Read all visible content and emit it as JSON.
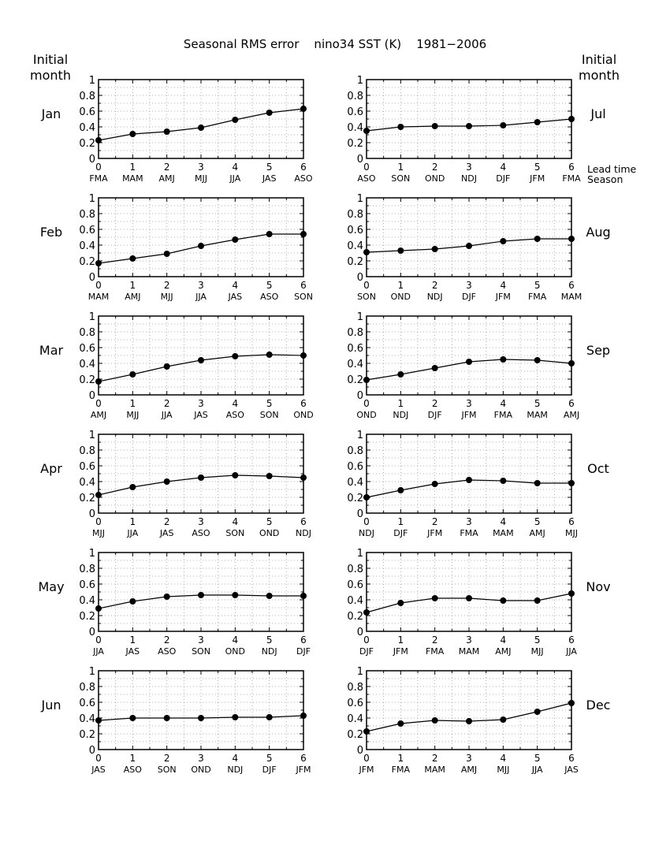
{
  "page": {
    "title": "Seasonal RMS error    nino34 SST (K)    1981−2006",
    "left_header": [
      "Initial",
      "month"
    ],
    "right_header": [
      "Initial",
      "month"
    ],
    "axis_note_lead": "Lead time",
    "axis_note_season": "Season"
  },
  "chart_data": [
    {
      "type": "line",
      "initial_month": "Jan",
      "column": "left",
      "x": [
        0,
        1,
        2,
        3,
        4,
        5,
        6
      ],
      "seasons": [
        "FMA",
        "MAM",
        "AMJ",
        "MJJ",
        "JJA",
        "JAS",
        "ASO"
      ],
      "values": [
        0.23,
        0.31,
        0.34,
        0.39,
        0.49,
        0.58,
        0.63
      ],
      "ylim": [
        0,
        1
      ],
      "yticks": [
        "0",
        "0.2",
        "0.4",
        "0.6",
        "0.8",
        "1"
      ],
      "grid": "dotted"
    },
    {
      "type": "line",
      "initial_month": "Feb",
      "column": "left",
      "x": [
        0,
        1,
        2,
        3,
        4,
        5,
        6
      ],
      "seasons": [
        "MAM",
        "AMJ",
        "MJJ",
        "JJA",
        "JAS",
        "ASO",
        "SON"
      ],
      "values": [
        0.17,
        0.23,
        0.29,
        0.39,
        0.47,
        0.54,
        0.54
      ],
      "ylim": [
        0,
        1
      ],
      "yticks": [
        "0",
        "0.2",
        "0.4",
        "0.6",
        "0.8",
        "1"
      ],
      "grid": "dotted"
    },
    {
      "type": "line",
      "initial_month": "Mar",
      "column": "left",
      "x": [
        0,
        1,
        2,
        3,
        4,
        5,
        6
      ],
      "seasons": [
        "AMJ",
        "MJJ",
        "JJA",
        "JAS",
        "ASO",
        "SON",
        "OND"
      ],
      "values": [
        0.17,
        0.26,
        0.36,
        0.44,
        0.49,
        0.51,
        0.5
      ],
      "ylim": [
        0,
        1
      ],
      "yticks": [
        "0",
        "0.2",
        "0.4",
        "0.6",
        "0.8",
        "1"
      ],
      "grid": "dotted"
    },
    {
      "type": "line",
      "initial_month": "Apr",
      "column": "left",
      "x": [
        0,
        1,
        2,
        3,
        4,
        5,
        6
      ],
      "seasons": [
        "MJJ",
        "JJA",
        "JAS",
        "ASO",
        "SON",
        "OND",
        "NDJ"
      ],
      "values": [
        0.23,
        0.33,
        0.4,
        0.45,
        0.48,
        0.47,
        0.45
      ],
      "ylim": [
        0,
        1
      ],
      "yticks": [
        "0",
        "0.2",
        "0.4",
        "0.6",
        "0.8",
        "1"
      ],
      "grid": "dotted"
    },
    {
      "type": "line",
      "initial_month": "May",
      "column": "left",
      "x": [
        0,
        1,
        2,
        3,
        4,
        5,
        6
      ],
      "seasons": [
        "JJA",
        "JAS",
        "ASO",
        "SON",
        "OND",
        "NDJ",
        "DJF"
      ],
      "values": [
        0.29,
        0.38,
        0.44,
        0.46,
        0.46,
        0.45,
        0.45
      ],
      "ylim": [
        0,
        1
      ],
      "yticks": [
        "0",
        "0.2",
        "0.4",
        "0.6",
        "0.8",
        "1"
      ],
      "grid": "dotted"
    },
    {
      "type": "line",
      "initial_month": "Jun",
      "column": "left",
      "x": [
        0,
        1,
        2,
        3,
        4,
        5,
        6
      ],
      "seasons": [
        "JAS",
        "ASO",
        "SON",
        "OND",
        "NDJ",
        "DJF",
        "JFM"
      ],
      "values": [
        0.37,
        0.4,
        0.4,
        0.4,
        0.41,
        0.41,
        0.43
      ],
      "ylim": [
        0,
        1
      ],
      "yticks": [
        "0",
        "0.2",
        "0.4",
        "0.6",
        "0.8",
        "1"
      ],
      "grid": "dotted"
    },
    {
      "type": "line",
      "initial_month": "Jul",
      "column": "right",
      "x": [
        0,
        1,
        2,
        3,
        4,
        5,
        6
      ],
      "seasons": [
        "ASO",
        "SON",
        "OND",
        "NDJ",
        "DJF",
        "JFM",
        "FMA"
      ],
      "values": [
        0.35,
        0.4,
        0.41,
        0.41,
        0.42,
        0.46,
        0.5
      ],
      "ylim": [
        0,
        1
      ],
      "yticks": [
        "0",
        "0.2",
        "0.4",
        "0.6",
        "0.8",
        "1"
      ],
      "grid": "dotted"
    },
    {
      "type": "line",
      "initial_month": "Aug",
      "column": "right",
      "x": [
        0,
        1,
        2,
        3,
        4,
        5,
        6
      ],
      "seasons": [
        "SON",
        "OND",
        "NDJ",
        "DJF",
        "JFM",
        "FMA",
        "MAM"
      ],
      "values": [
        0.31,
        0.33,
        0.35,
        0.39,
        0.45,
        0.48,
        0.48
      ],
      "ylim": [
        0,
        1
      ],
      "yticks": [
        "0",
        "0.2",
        "0.4",
        "0.6",
        "0.8",
        "1"
      ],
      "grid": "dotted"
    },
    {
      "type": "line",
      "initial_month": "Sep",
      "column": "right",
      "x": [
        0,
        1,
        2,
        3,
        4,
        5,
        6
      ],
      "seasons": [
        "OND",
        "NDJ",
        "DJF",
        "JFM",
        "FMA",
        "MAM",
        "AMJ"
      ],
      "values": [
        0.19,
        0.26,
        0.34,
        0.42,
        0.45,
        0.44,
        0.4
      ],
      "ylim": [
        0,
        1
      ],
      "yticks": [
        "0",
        "0.2",
        "0.4",
        "0.6",
        "0.8",
        "1"
      ],
      "grid": "dotted"
    },
    {
      "type": "line",
      "initial_month": "Oct",
      "column": "right",
      "x": [
        0,
        1,
        2,
        3,
        4,
        5,
        6
      ],
      "seasons": [
        "NDJ",
        "DJF",
        "JFM",
        "FMA",
        "MAM",
        "AMJ",
        "MJJ"
      ],
      "values": [
        0.2,
        0.29,
        0.37,
        0.42,
        0.41,
        0.38,
        0.38
      ],
      "ylim": [
        0,
        1
      ],
      "yticks": [
        "0",
        "0.2",
        "0.4",
        "0.6",
        "0.8",
        "1"
      ],
      "grid": "dotted"
    },
    {
      "type": "line",
      "initial_month": "Nov",
      "column": "right",
      "x": [
        0,
        1,
        2,
        3,
        4,
        5,
        6
      ],
      "seasons": [
        "DJF",
        "JFM",
        "FMA",
        "MAM",
        "AMJ",
        "MJJ",
        "JJA"
      ],
      "values": [
        0.24,
        0.36,
        0.42,
        0.42,
        0.39,
        0.39,
        0.48
      ],
      "ylim": [
        0,
        1
      ],
      "yticks": [
        "0",
        "0.2",
        "0.4",
        "0.6",
        "0.8",
        "1"
      ],
      "grid": "dotted"
    },
    {
      "type": "line",
      "initial_month": "Dec",
      "column": "right",
      "x": [
        0,
        1,
        2,
        3,
        4,
        5,
        6
      ],
      "seasons": [
        "JFM",
        "FMA",
        "MAM",
        "AMJ",
        "MJJ",
        "JJA",
        "JAS"
      ],
      "values": [
        0.23,
        0.33,
        0.37,
        0.36,
        0.38,
        0.48,
        0.59
      ],
      "ylim": [
        0,
        1
      ],
      "yticks": [
        "0",
        "0.2",
        "0.4",
        "0.6",
        "0.8",
        "1"
      ],
      "grid": "dotted"
    }
  ]
}
